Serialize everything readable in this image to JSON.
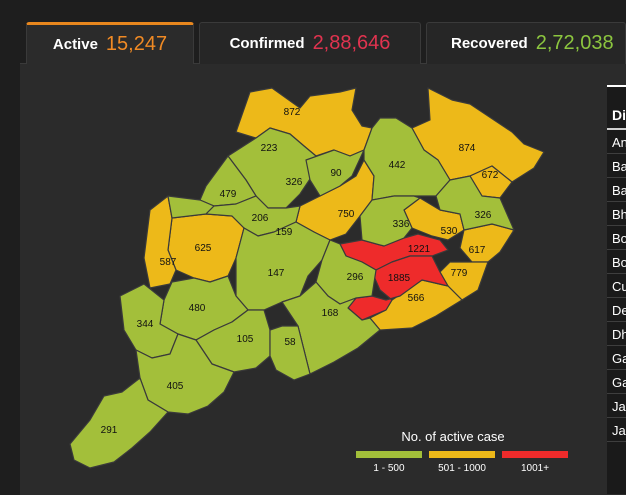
{
  "tabs": [
    {
      "label": "Active",
      "value": "15,247",
      "color": "#f08a24"
    },
    {
      "label": "Confirmed",
      "value": "2,88,646",
      "color": "#e0334f"
    },
    {
      "label": "Recovered",
      "value": "2,72,038",
      "color": "#8cc63f"
    }
  ],
  "legend": {
    "title": "No. of active case",
    "items": [
      {
        "label": "1 - 500",
        "color": "#a3bf3a"
      },
      {
        "label": "501 - 1000",
        "color": "#edb919"
      },
      {
        "label": "1001+",
        "color": "#ee2b2b"
      }
    ]
  },
  "district_list": {
    "header": "Di",
    "rows": [
      "An",
      "Ba",
      "Ba",
      "Bh",
      "Bo",
      "Bo",
      "Cu",
      "De",
      "Dh",
      "Ga",
      "Ga",
      "Ja",
      "Ja"
    ]
  },
  "map": {
    "colors": {
      "low": "#a3bf3a",
      "mid": "#edb919",
      "high": "#ee2b2b",
      "border": "#2a2a2a"
    },
    "district_values": [
      "872",
      "223",
      "874",
      "442",
      "326",
      "90",
      "672",
      "479",
      "206",
      "750",
      "326",
      "159",
      "336",
      "530",
      "625",
      "1221",
      "617",
      "587",
      "147",
      "296",
      "1885",
      "779",
      "480",
      "344",
      "105",
      "168",
      "566",
      "58",
      "405",
      "291"
    ]
  }
}
